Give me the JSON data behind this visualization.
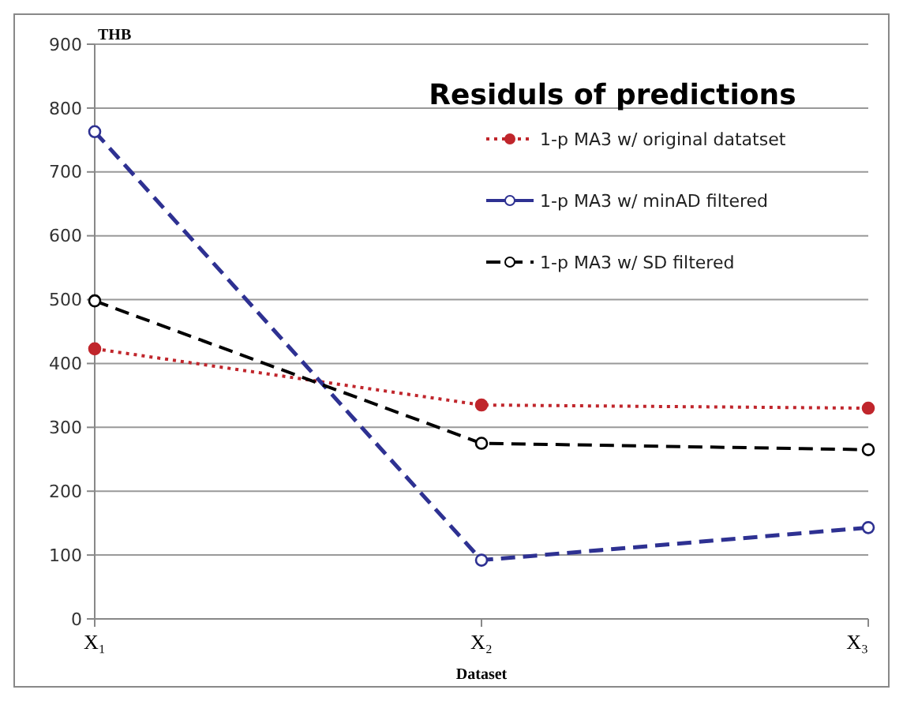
{
  "chart_data": {
    "type": "line",
    "title": "Residuls of predictions",
    "xlabel": "Dataset",
    "ylabel": "THB",
    "categories": [
      "X₁",
      "X₂",
      "X₃"
    ],
    "series": [
      {
        "name": "1-p MA3 w/ original datatset",
        "color": "#c0262c",
        "values": [
          423,
          335,
          330
        ],
        "line_style": "dotted",
        "marker": "circle"
      },
      {
        "name": "1-p MA3 w/ minAD filtered",
        "color": "#2e3192",
        "values": [
          763,
          92,
          143
        ],
        "line_style": "dashed",
        "marker": "circle"
      },
      {
        "name": "1-p MA3 w/ SD filtered",
        "color": "#000000",
        "values": [
          498,
          275,
          265
        ],
        "line_style": "dashed",
        "marker": "circle"
      }
    ],
    "ylim": [
      0,
      900
    ],
    "yticks": [
      0,
      100,
      200,
      300,
      400,
      500,
      600,
      700,
      800,
      900
    ],
    "grid": "y",
    "legend": "top right"
  }
}
